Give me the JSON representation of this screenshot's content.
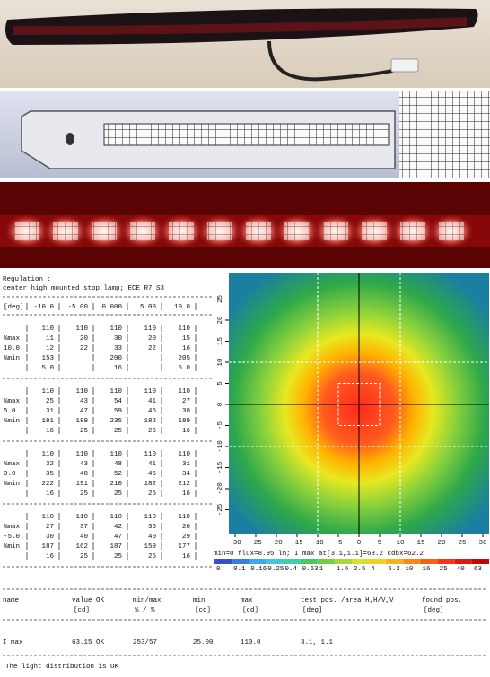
{
  "report": {
    "title": "Regulation :",
    "subtitle": "center high mounted stop lamp; ECE R7 S3",
    "header": {
      "label": "[deg]",
      "cells": [
        "-10.0",
        "-5.00",
        "0.000",
        "5.00",
        "10.0"
      ]
    },
    "blocks": [
      {
        "rows": [
          {
            "label": "",
            "cells": [
              "110",
              "110",
              "110",
              "110",
              "110"
            ],
            "color": "#111111"
          },
          {
            "label": "%max",
            "cells": [
              "11",
              "20",
              "30",
              "20",
              "15"
            ],
            "color": "#22aa22"
          },
          {
            "label": "10.0",
            "cells": [
              "12",
              "22",
              "33",
              "22",
              "16"
            ],
            "color": "#111111"
          },
          {
            "label": "%min",
            "cells": [
              "153",
              "",
              "200",
              "",
              "205"
            ],
            "color": "#22aa22"
          },
          {
            "label": "",
            "cells": [
              "5.0",
              "",
              "16",
              "",
              "5.0"
            ],
            "color": "#111111"
          }
        ]
      },
      {
        "rows": [
          {
            "label": "",
            "cells": [
              "110",
              "110",
              "110",
              "110",
              "110"
            ],
            "color": "#111111"
          },
          {
            "label": "%max",
            "cells": [
              "25",
              "43",
              "54",
              "41",
              "27"
            ],
            "color": "#22aa22"
          },
          {
            "label": "5.0",
            "cells": [
              "31",
              "47",
              "59",
              "46",
              "30"
            ],
            "color": "#111111"
          },
          {
            "label": "%min",
            "cells": [
              "191",
              "189",
              "235",
              "182",
              "189"
            ],
            "color": "#22aa22"
          },
          {
            "label": "",
            "cells": [
              "16",
              "25",
              "25",
              "25",
              "16"
            ],
            "color": "#111111"
          }
        ]
      },
      {
        "rows": [
          {
            "label": "",
            "cells": [
              "110",
              "110",
              "110",
              "110",
              "110"
            ],
            "color": "#111111"
          },
          {
            "label": "%max",
            "cells": [
              "32",
              "43",
              "48",
              "41",
              "31"
            ],
            "color": "#22aa22"
          },
          {
            "label": "0.0",
            "cells": [
              "35",
              "48",
              "52",
              "45",
              "34"
            ],
            "color": "#111111"
          },
          {
            "label": "%min",
            "cells": [
              "222",
              "191",
              "210",
              "182",
              "212"
            ],
            "color": "#22aa22"
          },
          {
            "label": "",
            "cells": [
              "16",
              "25",
              "25",
              "25",
              "16"
            ],
            "color": "#111111"
          }
        ]
      },
      {
        "rows": [
          {
            "label": "",
            "cells": [
              "110",
              "110",
              "110",
              "110",
              "110"
            ],
            "color": "#111111"
          },
          {
            "label": "%max",
            "cells": [
              "27",
              "37",
              "42",
              "36",
              "26"
            ],
            "color": "#22aa22"
          },
          {
            "label": "-5.0",
            "cells": [
              "30",
              "40",
              "47",
              "40",
              "29"
            ],
            "color": "#111111"
          },
          {
            "label": "%min",
            "cells": [
              "187",
              "162",
              "187",
              "159",
              "177"
            ],
            "color": "#22aa22"
          },
          {
            "label": "",
            "cells": [
              "16",
              "25",
              "25",
              "25",
              "16"
            ],
            "color": "#111111"
          }
        ]
      }
    ]
  },
  "heatmap": {
    "xticks": [
      -30,
      -25,
      -20,
      -15,
      -10,
      -5,
      0,
      5,
      10,
      15,
      20,
      25,
      30
    ],
    "yticks": [
      -25,
      -20,
      -15,
      -10,
      -5,
      0,
      5,
      10,
      15,
      20,
      25
    ],
    "caption": "min=0 flux=8.95 lm; I max at[3.1,1.1]=63.2 cdbx=62.2",
    "colorbar_labels": [
      "0",
      "0.1",
      "0.16",
      "0.25",
      "0.4",
      "0.63",
      "1",
      "1.6",
      "2.5",
      "4",
      "6.3",
      "10",
      "16",
      "25",
      "40",
      "63"
    ]
  },
  "summary": {
    "headers": [
      "name",
      "value OK",
      "min/max",
      "min",
      "max",
      "test pos. /area H,H/V,V",
      "found pos."
    ],
    "units": [
      "",
      "[cd]",
      "% / %",
      "[cd]",
      "[cd]",
      "[deg]",
      "[deg]"
    ],
    "row": [
      "I max",
      "63.15 OK",
      "253/57",
      "25.00",
      "110.0",
      "3.1, 1.1",
      ""
    ],
    "footer": "The light distribution is OK"
  }
}
